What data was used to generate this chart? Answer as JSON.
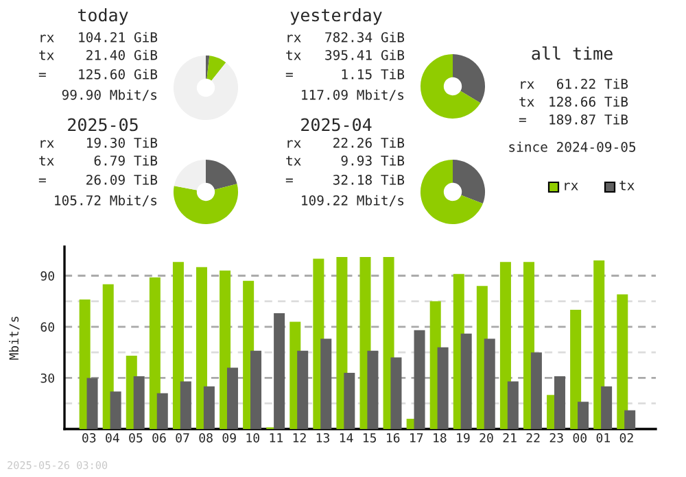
{
  "chart_data": [
    {
      "type": "donut",
      "title": "today",
      "annotations": [
        "rx 104.21 GiB",
        "tx 21.40 GiB",
        "= 125.60 GiB",
        "99.90 Mbit/s"
      ],
      "categories": [
        null,
        null,
        null
      ],
      "values": [
        1.8,
        8.9,
        89.3
      ],
      "colors": [
        "#606060",
        "#90cc00",
        "#f0f0f0"
      ]
    },
    {
      "type": "donut",
      "title": "yesterday",
      "annotations": [
        "rx 782.34 GiB",
        "tx 395.41 GiB",
        "= 1.15 TiB",
        "117.09 Mbit/s"
      ],
      "categories": [
        null,
        null
      ],
      "values": [
        33.6,
        66.4
      ],
      "colors": [
        "#606060",
        "#90cc00"
      ]
    },
    {
      "type": "donut",
      "title": "2025-05",
      "annotations": [
        "rx 19.30 TiB",
        "tx 6.79 TiB",
        "= 26.09 TiB",
        "105.72 Mbit/s"
      ],
      "categories": [
        null,
        null,
        null
      ],
      "values": [
        21,
        57,
        22
      ],
      "colors": [
        "#606060",
        "#90cc00",
        "#f0f0f0"
      ]
    },
    {
      "type": "donut",
      "title": "2025-04",
      "annotations": [
        "rx 22.26 TiB",
        "tx 9.93 TiB",
        "= 32.18 TiB",
        "109.22 Mbit/s"
      ],
      "categories": [
        null,
        null
      ],
      "values": [
        30.9,
        69.1
      ],
      "colors": [
        "#606060",
        "#90cc00"
      ]
    },
    {
      "type": "other",
      "title": "all time",
      "annotations": [
        "rx 61.22 TiB",
        "tx 128.66 TiB",
        "= 189.87 TiB",
        "since 2024-09-05"
      ]
    },
    {
      "type": "bar",
      "ylabel": "Mbit/s",
      "annotations": [
        "2025-05-26 03:00"
      ],
      "legend": "top right",
      "grid": "y",
      "categories": [
        "03",
        "04",
        "05",
        "06",
        "07",
        "08",
        "09",
        "10",
        "11",
        "12",
        "13",
        "14",
        "15",
        "16",
        "17",
        "18",
        "19",
        "20",
        "21",
        "22",
        "23",
        "00",
        "01",
        "02"
      ],
      "series": [
        {
          "name": "rx",
          "color": "#90cc00",
          "values": [
            76,
            85,
            43,
            89,
            98,
            95,
            93,
            87,
            1,
            63,
            100,
            101,
            101,
            101,
            6,
            75,
            91,
            84,
            98,
            98,
            20,
            70,
            99,
            79
          ]
        },
        {
          "name": "tx",
          "color": "#606060",
          "values": [
            30,
            22,
            31,
            21,
            28,
            25,
            36,
            46,
            68,
            46,
            53,
            33,
            46,
            42,
            58,
            48,
            56,
            53,
            28,
            45,
            31,
            16,
            25,
            11
          ]
        }
      ],
      "ylim": [
        0,
        107
      ],
      "yticks": [
        {
          "value": 15,
          "label": null
        },
        30,
        {
          "value": 45,
          "label": null
        },
        60,
        {
          "value": 75,
          "label": null
        },
        90
      ]
    }
  ]
}
